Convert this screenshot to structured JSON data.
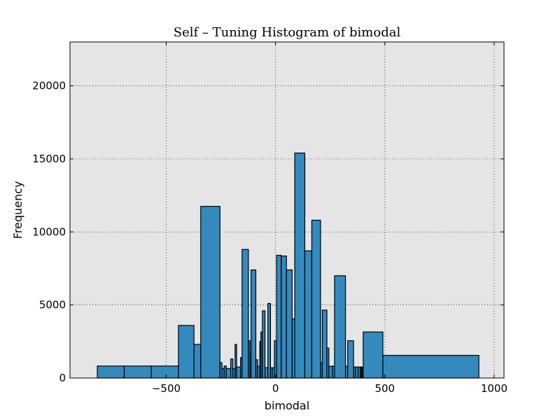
{
  "chart_data": {
    "type": "bar",
    "title": "Self – Tuning Histogram of bimodal",
    "xlabel": "bimodal",
    "ylabel": "Frequency",
    "xlim": [
      -940,
      1045
    ],
    "ylim": [
      0,
      23000
    ],
    "xticks": [
      -500,
      0,
      500,
      1000
    ],
    "xtick_labels": [
      "−500",
      "0",
      "500",
      "1000"
    ],
    "yticks": [
      0,
      5000,
      10000,
      15000,
      20000
    ],
    "ytick_labels": [
      "0",
      "5000",
      "10000",
      "15000",
      "20000"
    ],
    "grid": true,
    "bar_color": "#348abd",
    "bins": [
      {
        "x0": -815,
        "x1": -692,
        "count": 820
      },
      {
        "x0": -692,
        "x1": -568,
        "count": 820
      },
      {
        "x0": -568,
        "x1": -444,
        "count": 820
      },
      {
        "x0": -444,
        "x1": -373,
        "count": 3600
      },
      {
        "x0": -373,
        "x1": -342,
        "count": 2300
      },
      {
        "x0": -342,
        "x1": -254,
        "count": 11750
      },
      {
        "x0": -254,
        "x1": -245,
        "count": 1050
      },
      {
        "x0": -245,
        "x1": -235,
        "count": 650
      },
      {
        "x0": -235,
        "x1": -225,
        "count": 820
      },
      {
        "x0": -225,
        "x1": -205,
        "count": 650
      },
      {
        "x0": -205,
        "x1": -195,
        "count": 1300
      },
      {
        "x0": -195,
        "x1": -185,
        "count": 650
      },
      {
        "x0": -185,
        "x1": -178,
        "count": 2300
      },
      {
        "x0": -178,
        "x1": -160,
        "count": 750
      },
      {
        "x0": -160,
        "x1": -153,
        "count": 1400
      },
      {
        "x0": -153,
        "x1": -124,
        "count": 8800
      },
      {
        "x0": -124,
        "x1": -117,
        "count": 2550
      },
      {
        "x0": -117,
        "x1": -112,
        "count": 1650
      },
      {
        "x0": -112,
        "x1": -90,
        "count": 7400
      },
      {
        "x0": -90,
        "x1": -82,
        "count": 1250
      },
      {
        "x0": -82,
        "x1": -72,
        "count": 800
      },
      {
        "x0": -72,
        "x1": -67,
        "count": 2500
      },
      {
        "x0": -67,
        "x1": -60,
        "count": 3150
      },
      {
        "x0": -60,
        "x1": -48,
        "count": 4600
      },
      {
        "x0": -48,
        "x1": -35,
        "count": 700
      },
      {
        "x0": -35,
        "x1": -23,
        "count": 5100
      },
      {
        "x0": -23,
        "x1": -15,
        "count": 700
      },
      {
        "x0": -15,
        "x1": -5,
        "count": 700
      },
      {
        "x0": -5,
        "x1": 5,
        "count": 2550
      },
      {
        "x0": 5,
        "x1": 26,
        "count": 8400
      },
      {
        "x0": 26,
        "x1": 50,
        "count": 8350
      },
      {
        "x0": 50,
        "x1": 76,
        "count": 7400
      },
      {
        "x0": 76,
        "x1": 88,
        "count": 4050
      },
      {
        "x0": 88,
        "x1": 134,
        "count": 15400
      },
      {
        "x0": 134,
        "x1": 166,
        "count": 8700
      },
      {
        "x0": 166,
        "x1": 206,
        "count": 10800
      },
      {
        "x0": 206,
        "x1": 214,
        "count": 1050
      },
      {
        "x0": 214,
        "x1": 235,
        "count": 4650
      },
      {
        "x0": 235,
        "x1": 244,
        "count": 2050
      },
      {
        "x0": 244,
        "x1": 260,
        "count": 800
      },
      {
        "x0": 260,
        "x1": 270,
        "count": 820
      },
      {
        "x0": 270,
        "x1": 320,
        "count": 7000
      },
      {
        "x0": 320,
        "x1": 330,
        "count": 800
      },
      {
        "x0": 330,
        "x1": 357,
        "count": 2550
      },
      {
        "x0": 357,
        "x1": 366,
        "count": 750
      },
      {
        "x0": 366,
        "x1": 378,
        "count": 750
      },
      {
        "x0": 378,
        "x1": 388,
        "count": 750
      },
      {
        "x0": 388,
        "x1": 393,
        "count": 750
      },
      {
        "x0": 393,
        "x1": 396,
        "count": 650
      },
      {
        "x0": 396,
        "x1": 401,
        "count": 750
      },
      {
        "x0": 401,
        "x1": 491,
        "count": 3150
      },
      {
        "x0": 491,
        "x1": 930,
        "count": 1550
      }
    ]
  }
}
